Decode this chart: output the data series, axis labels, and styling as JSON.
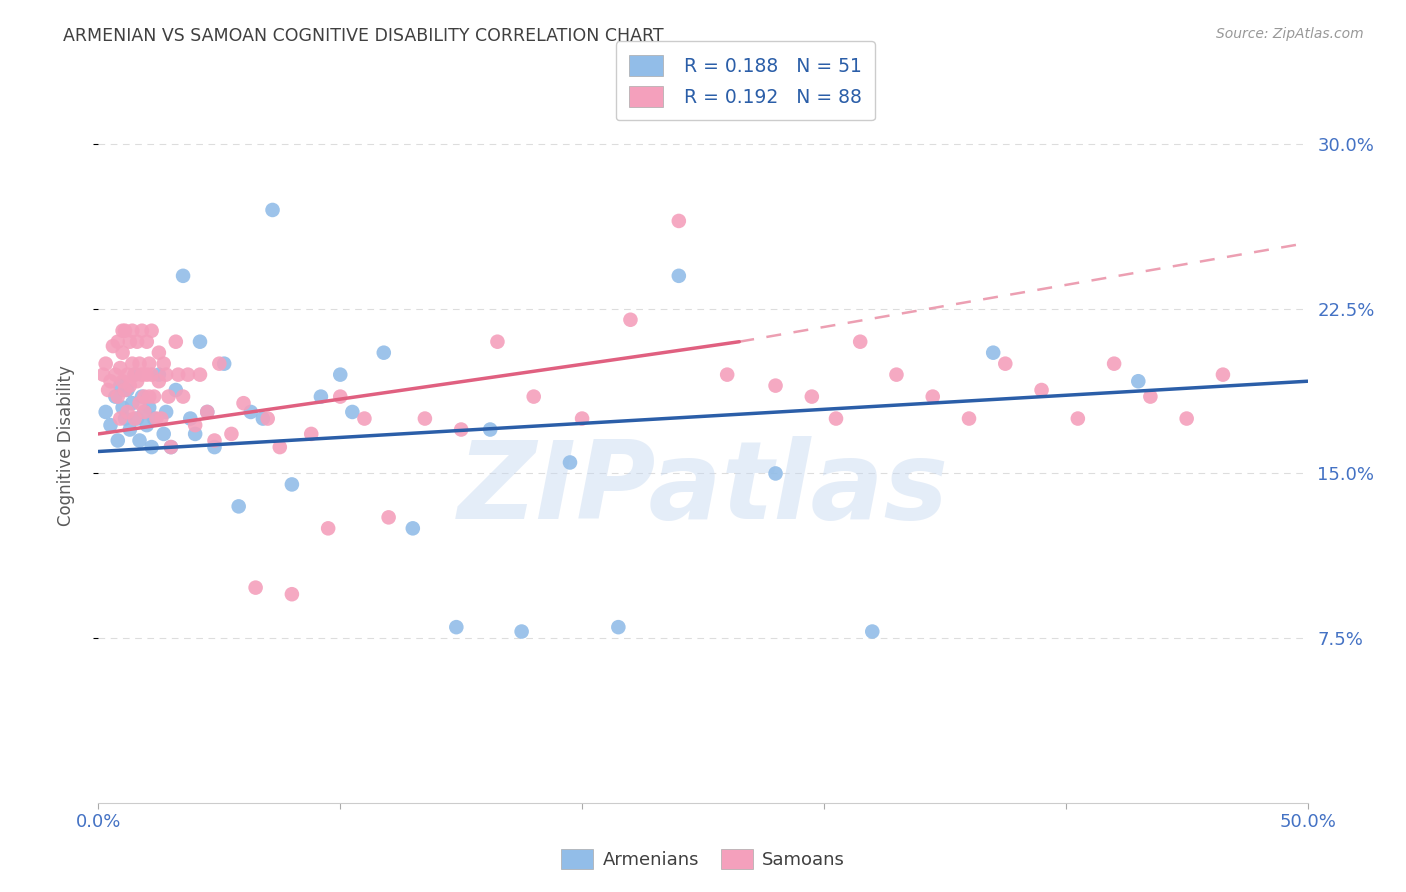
{
  "title": "ARMENIAN VS SAMOAN COGNITIVE DISABILITY CORRELATION CHART",
  "source": "Source: ZipAtlas.com",
  "ylabel": "Cognitive Disability",
  "xlim": [
    0.0,
    0.5
  ],
  "ylim": [
    0.0,
    0.325
  ],
  "yticks": [
    0.075,
    0.15,
    0.225,
    0.3
  ],
  "yticklabels": [
    "7.5%",
    "15.0%",
    "22.5%",
    "30.0%"
  ],
  "watermark": "ZIPatlas",
  "armenian_color": "#92BDE8",
  "samoan_color": "#F4A0BC",
  "armenian_line_color": "#2B5EA8",
  "samoan_line_color": "#E06080",
  "background_color": "#FFFFFF",
  "grid_color": "#DDDDDD",
  "title_color": "#404040",
  "axis_label_color": "#5A5A5A",
  "tick_color": "#4472C4",
  "armenian_x": [
    0.003,
    0.005,
    0.007,
    0.008,
    0.009,
    0.01,
    0.011,
    0.012,
    0.013,
    0.014,
    0.015,
    0.016,
    0.017,
    0.018,
    0.019,
    0.02,
    0.021,
    0.022,
    0.023,
    0.025,
    0.027,
    0.028,
    0.03,
    0.032,
    0.035,
    0.038,
    0.04,
    0.042,
    0.045,
    0.048,
    0.052,
    0.058,
    0.063,
    0.068,
    0.072,
    0.08,
    0.092,
    0.1,
    0.105,
    0.118,
    0.13,
    0.148,
    0.162,
    0.175,
    0.195,
    0.215,
    0.24,
    0.28,
    0.32,
    0.37,
    0.43
  ],
  "armenian_y": [
    0.178,
    0.172,
    0.185,
    0.165,
    0.19,
    0.18,
    0.175,
    0.188,
    0.17,
    0.182,
    0.195,
    0.175,
    0.165,
    0.185,
    0.178,
    0.172,
    0.18,
    0.162,
    0.175,
    0.195,
    0.168,
    0.178,
    0.162,
    0.188,
    0.24,
    0.175,
    0.168,
    0.21,
    0.178,
    0.162,
    0.2,
    0.135,
    0.178,
    0.175,
    0.27,
    0.145,
    0.185,
    0.195,
    0.178,
    0.205,
    0.125,
    0.08,
    0.17,
    0.078,
    0.155,
    0.08,
    0.24,
    0.15,
    0.078,
    0.205,
    0.192
  ],
  "samoan_x": [
    0.002,
    0.003,
    0.004,
    0.005,
    0.006,
    0.007,
    0.008,
    0.008,
    0.009,
    0.009,
    0.01,
    0.01,
    0.01,
    0.011,
    0.011,
    0.012,
    0.012,
    0.013,
    0.013,
    0.014,
    0.014,
    0.015,
    0.015,
    0.016,
    0.016,
    0.017,
    0.017,
    0.018,
    0.018,
    0.019,
    0.019,
    0.02,
    0.02,
    0.021,
    0.021,
    0.022,
    0.022,
    0.023,
    0.024,
    0.025,
    0.025,
    0.026,
    0.027,
    0.028,
    0.029,
    0.03,
    0.032,
    0.033,
    0.035,
    0.037,
    0.04,
    0.042,
    0.045,
    0.048,
    0.05,
    0.055,
    0.06,
    0.065,
    0.07,
    0.075,
    0.08,
    0.088,
    0.095,
    0.1,
    0.11,
    0.12,
    0.135,
    0.15,
    0.165,
    0.18,
    0.2,
    0.22,
    0.24,
    0.26,
    0.28,
    0.295,
    0.305,
    0.315,
    0.33,
    0.345,
    0.36,
    0.375,
    0.39,
    0.405,
    0.42,
    0.435,
    0.45,
    0.465
  ],
  "samoan_y": [
    0.195,
    0.2,
    0.188,
    0.192,
    0.208,
    0.195,
    0.185,
    0.21,
    0.198,
    0.175,
    0.215,
    0.192,
    0.205,
    0.188,
    0.215,
    0.195,
    0.178,
    0.21,
    0.19,
    0.2,
    0.215,
    0.195,
    0.175,
    0.21,
    0.192,
    0.2,
    0.182,
    0.215,
    0.195,
    0.178,
    0.185,
    0.21,
    0.195,
    0.185,
    0.2,
    0.215,
    0.195,
    0.185,
    0.175,
    0.205,
    0.192,
    0.175,
    0.2,
    0.195,
    0.185,
    0.162,
    0.21,
    0.195,
    0.185,
    0.195,
    0.172,
    0.195,
    0.178,
    0.165,
    0.2,
    0.168,
    0.182,
    0.098,
    0.175,
    0.162,
    0.095,
    0.168,
    0.125,
    0.185,
    0.175,
    0.13,
    0.175,
    0.17,
    0.21,
    0.185,
    0.175,
    0.22,
    0.265,
    0.195,
    0.19,
    0.185,
    0.175,
    0.21,
    0.195,
    0.185,
    0.175,
    0.2,
    0.188,
    0.175,
    0.2,
    0.185,
    0.175,
    0.195
  ],
  "arm_line_x0": 0.0,
  "arm_line_x1": 0.5,
  "arm_line_y0": 0.16,
  "arm_line_y1": 0.192,
  "sam_line_solid_x0": 0.0,
  "sam_line_solid_x1": 0.265,
  "sam_line_solid_y0": 0.168,
  "sam_line_solid_y1": 0.21,
  "sam_line_dash_x0": 0.265,
  "sam_line_dash_x1": 0.5,
  "sam_line_dash_y0": 0.21,
  "sam_line_dash_y1": 0.255
}
